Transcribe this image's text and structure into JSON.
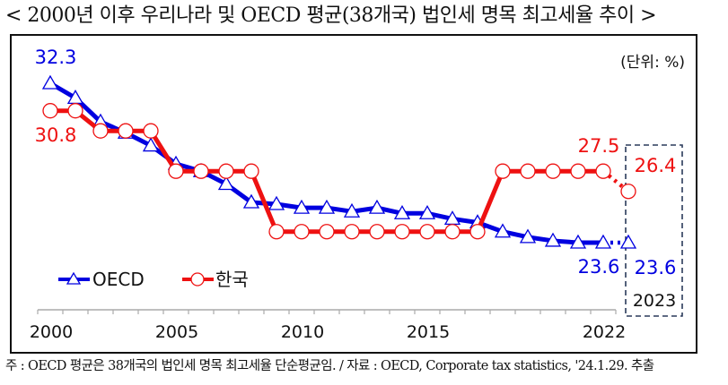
{
  "title": "< 2000년 이후 우리나라 및 OECD 평균(38개국) 법인세 명목 최고세율 추이 >",
  "unit_label": "(단위: %)",
  "footer": "주 : OECD 평균은 38개국의 법인세 명목 최고세율 단순평균임. / 자료 : OECD, Corporate tax statistics, '24.1.29. 추출",
  "colors": {
    "oecd": "#0000e0",
    "korea": "#ee1111",
    "axis": "#aaaaaa",
    "highlight_box": "#2a3a5a",
    "text": "#111111"
  },
  "chart_data": {
    "type": "line",
    "title": "2000년 이후 우리나라 및 OECD 평균(38개국) 법인세 명목 최고세율 추이",
    "xlabel": "",
    "ylabel": "(단위: %)",
    "x": [
      2000,
      2001,
      2002,
      2003,
      2004,
      2005,
      2006,
      2007,
      2008,
      2009,
      2010,
      2011,
      2012,
      2013,
      2014,
      2015,
      2016,
      2017,
      2018,
      2019,
      2020,
      2021,
      2022,
      2023
    ],
    "x_tick_labels": [
      "2000",
      "2005",
      "2010",
      "2015",
      "2022"
    ],
    "x_tick_label_years": [
      2000,
      2005,
      2010,
      2015,
      2022
    ],
    "highlight": {
      "year": 2023,
      "label": "2023",
      "style": "dashed box",
      "connector": "dotted"
    },
    "series": [
      {
        "name": "OECD",
        "marker": "triangle",
        "values": [
          32.3,
          31.5,
          30.2,
          29.6,
          28.9,
          27.9,
          27.5,
          26.8,
          25.8,
          25.7,
          25.5,
          25.5,
          25.3,
          25.5,
          25.2,
          25.2,
          24.9,
          24.7,
          24.2,
          23.9,
          23.7,
          23.6,
          23.6,
          23.6
        ]
      },
      {
        "name": "한국",
        "marker": "circle",
        "values": [
          30.8,
          30.8,
          29.7,
          29.7,
          29.7,
          27.5,
          27.5,
          27.5,
          27.5,
          24.2,
          24.2,
          24.2,
          24.2,
          24.2,
          24.2,
          24.2,
          24.2,
          24.2,
          27.5,
          27.5,
          27.5,
          27.5,
          27.5,
          26.4
        ]
      }
    ],
    "annotations": [
      {
        "text": "32.3",
        "series": "OECD",
        "year": 2000
      },
      {
        "text": "30.8",
        "series": "한국",
        "year": 2000
      },
      {
        "text": "27.5",
        "series": "한국",
        "year": 2022
      },
      {
        "text": "26.4",
        "series": "한국",
        "year": 2023
      },
      {
        "text": "23.6",
        "series": "OECD",
        "year": 2022
      },
      {
        "text": "23.6",
        "series": "OECD",
        "year": 2023
      }
    ],
    "ylim": [
      22,
      34
    ],
    "grid": false,
    "legend_position": "lower left",
    "legend": [
      "OECD",
      "한국"
    ]
  }
}
